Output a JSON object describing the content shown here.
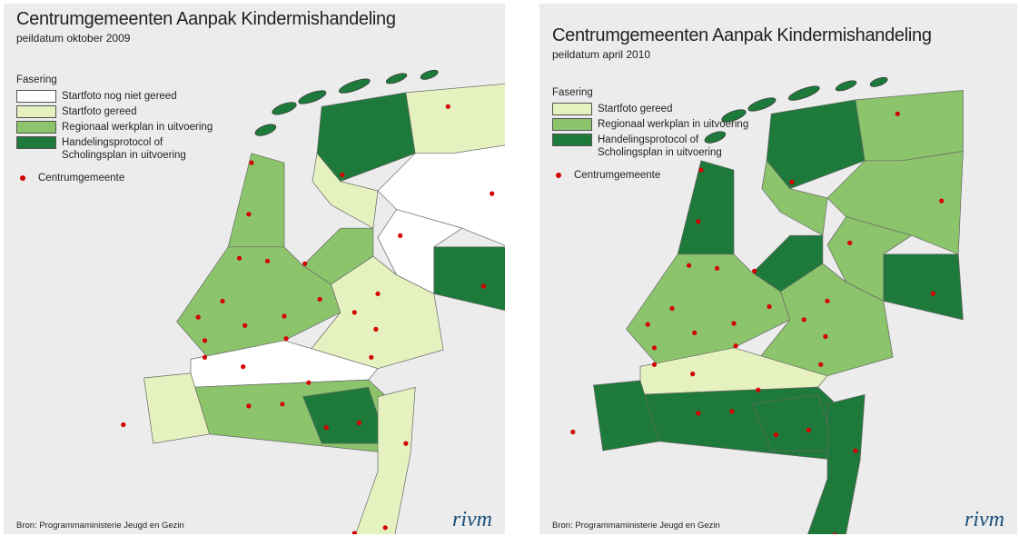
{
  "panels": [
    {
      "title": "Centrumgemeenten Aanpak Kindermishandeling",
      "subtitle": "peildatum oktober 2009",
      "legend": {
        "title": "Fasering",
        "items": [
          "Startfoto nog niet gereed",
          "Startfoto gereed",
          "Regionaal werkplan in uitvoering",
          "Handelingsprotocol of Scholingsplan in uitvoering"
        ],
        "marker": "Centrumgemeente"
      },
      "source": "Bron: Programmaministerie Jeugd en Gezin",
      "logo": "rivm"
    },
    {
      "title": "Centrumgemeenten Aanpak Kindermishandeling",
      "subtitle": "peildatum april 2010",
      "legend": {
        "title": "Fasering",
        "items": [
          "Startfoto gereed",
          "Regionaal werkplan in uitvoering",
          "Handelingsprotocol of Scholingsplan in uitvoering"
        ],
        "marker": "Centrumgemeente"
      },
      "source": "Bron: Programmaministerie Jeugd en Gezin",
      "logo": "rivm"
    }
  ]
}
